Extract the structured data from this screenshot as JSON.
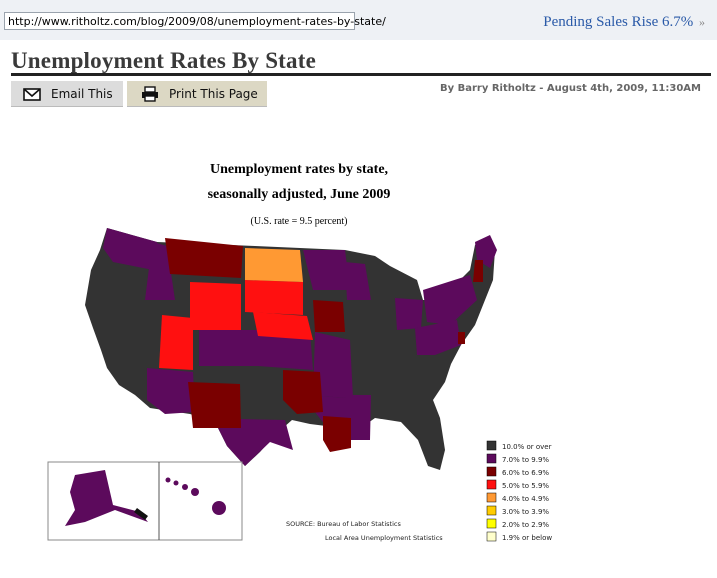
{
  "browser": {
    "url": "http://www.ritholtz.com/blog/2009/08/unemployment-rates-by-state/"
  },
  "promo": {
    "link_text": "Pending Sales Rise 6.7%",
    "arrow": "»"
  },
  "post": {
    "title": "Unemployment Rates By State",
    "byline": "By Barry Ritholtz - August 4th, 2009, 11:30AM"
  },
  "actions": {
    "email_label": "Email This",
    "email_icon": "envelope-icon",
    "print_label": "Print This Page",
    "print_icon": "printer-icon"
  },
  "figure": {
    "title_line1": "Unemployment rates by state,",
    "title_line2": "seasonally adjusted, June 2009",
    "subtitle": "(U.S. rate = 9.5 percent)",
    "source_line1": "SOURCE:  Bureau of Labor Statistics",
    "source_line2": "Local Area Unemployment Statistics"
  },
  "legend": [
    {
      "label": "10.0% or over",
      "color": "#333333"
    },
    {
      "label": "7.0% to 9.9%",
      "color": "#5c0a5c"
    },
    {
      "label": "6.0% to 6.9%",
      "color": "#7a0000"
    },
    {
      "label": "5.0% to 5.9%",
      "color": "#ff1010"
    },
    {
      "label": "4.0% to 4.9%",
      "color": "#ff9933"
    },
    {
      "label": "3.0% to 3.9%",
      "color": "#ffcc00"
    },
    {
      "label": "2.0% to 2.9%",
      "color": "#ffff00"
    },
    {
      "label": "1.9% or below",
      "color": "#ffffcc"
    }
  ]
}
